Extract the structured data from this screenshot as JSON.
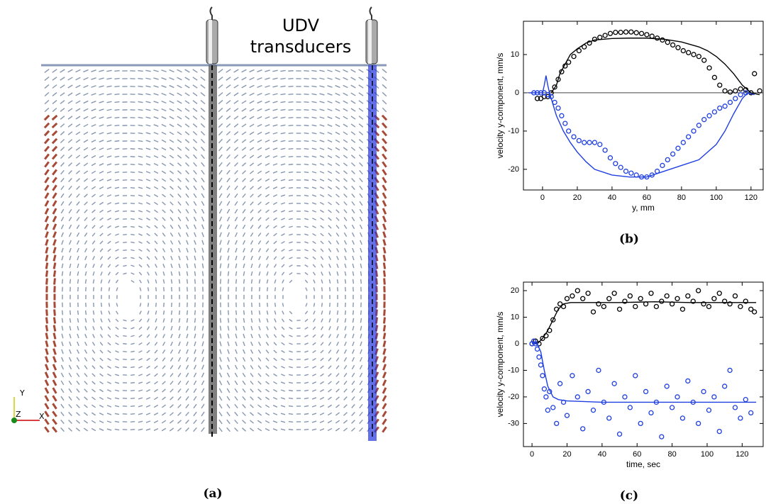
{
  "panel_a": {
    "annotation_lines": [
      "UDV",
      "transducers"
    ],
    "caption": "(a)",
    "axis_labels": [
      "Y",
      "Z",
      "X"
    ]
  },
  "chart_data": [
    {
      "type": "line",
      "caption": "(b)",
      "x_label": "y, mm",
      "y_label": "velocity y-component, mm/s",
      "xlim": [
        -11,
        127
      ],
      "ylim": [
        -25.4,
        18.7
      ],
      "xticks": [
        0,
        20,
        40,
        60,
        80,
        100,
        120
      ],
      "yticks": [
        -20,
        -10,
        0,
        10
      ],
      "zero_line": true,
      "series": [
        {
          "color": "#000000",
          "mode": "markers",
          "x": [
            -3,
            -1,
            1,
            3,
            5,
            7,
            9,
            11,
            13,
            15,
            18,
            21,
            24,
            27,
            30,
            33,
            36,
            39,
            42,
            45,
            48,
            51,
            54,
            57,
            60,
            63,
            66,
            69,
            72,
            75,
            78,
            81,
            84,
            87,
            90,
            93,
            96,
            99,
            102,
            105,
            108,
            111,
            114,
            117,
            120,
            122,
            125
          ],
          "values": [
            -1.5,
            -1.5,
            -1,
            -1,
            0,
            1.5,
            3.5,
            5.5,
            7,
            8,
            9.5,
            11,
            12,
            13,
            14,
            14.5,
            15,
            15.5,
            15.8,
            15.8,
            15.9,
            15.9,
            15.7,
            15.5,
            15.2,
            14.8,
            14.3,
            13.8,
            13.2,
            12.5,
            11.8,
            11,
            10.5,
            10,
            9.5,
            8.5,
            6.5,
            4,
            2,
            0.5,
            0.2,
            0.5,
            1,
            0.8,
            0,
            5,
            0.5
          ]
        },
        {
          "color": "#000000",
          "mode": "line",
          "x": [
            5,
            8,
            10,
            13,
            16,
            20,
            25,
            30,
            40,
            50,
            60,
            70,
            80,
            90,
            95,
            100,
            105,
            110,
            115,
            120,
            125
          ],
          "values": [
            0,
            2,
            5,
            7.5,
            10,
            11.5,
            13,
            13.8,
            14.2,
            14.3,
            14.3,
            14,
            13.3,
            12,
            11,
            9.5,
            7.5,
            5,
            2,
            0,
            -0.5
          ]
        },
        {
          "color": "#1f3fe0",
          "mode": "markers",
          "x": [
            -5,
            -3,
            -1,
            1,
            3,
            5,
            7,
            9,
            11,
            13,
            15,
            18,
            21,
            24,
            27,
            30,
            33,
            36,
            39,
            42,
            45,
            48,
            51,
            54,
            57,
            60,
            63,
            66,
            69,
            72,
            75,
            78,
            81,
            84,
            87,
            90,
            93,
            96,
            99,
            102,
            105,
            108,
            111,
            114,
            117
          ],
          "values": [
            0,
            0,
            0,
            0,
            -0.5,
            -1,
            -2.5,
            -4,
            -6,
            -8,
            -10,
            -11.5,
            -12.5,
            -13,
            -13,
            -13,
            -13.5,
            -15,
            -17,
            -18.5,
            -19.5,
            -20.5,
            -21,
            -21.5,
            -22,
            -22,
            -21.5,
            -20.5,
            -19,
            -17.5,
            -16,
            -14.5,
            -13,
            -11.5,
            -10,
            -8.5,
            -7,
            -6,
            -5,
            -4,
            -3.5,
            -2.5,
            -1.5,
            -0.5,
            0
          ]
        },
        {
          "color": "#1f3fe0",
          "mode": "line",
          "x": [
            -8,
            0,
            1,
            2,
            3,
            4,
            6,
            8,
            12,
            16,
            20,
            25,
            30,
            40,
            50,
            60,
            70,
            80,
            90,
            100,
            105,
            110,
            115,
            118,
            122
          ],
          "values": [
            0,
            0,
            2,
            4.5,
            2,
            0,
            -3,
            -6,
            -10,
            -13,
            -15.5,
            -18,
            -20,
            -21.5,
            -22,
            -22,
            -20.5,
            -19,
            -17.5,
            -13.5,
            -10,
            -5.5,
            -1.5,
            0,
            -0.5
          ]
        }
      ]
    },
    {
      "type": "line",
      "caption": "(c)",
      "x_label": "time, sec",
      "y_label": "velocity y-component, mm/s",
      "xlim": [
        -4.9,
        132
      ],
      "ylim": [
        -38.7,
        23.2
      ],
      "xticks": [
        0,
        20,
        40,
        60,
        80,
        100,
        120
      ],
      "yticks": [
        -30,
        -20,
        -10,
        0,
        10,
        20
      ],
      "zero_line": false,
      "series": [
        {
          "color": "#000000",
          "mode": "markers",
          "x": [
            0,
            2,
            4,
            6,
            8,
            10,
            12,
            14,
            16,
            18,
            20,
            23,
            26,
            29,
            32,
            35,
            38,
            41,
            44,
            47,
            50,
            53,
            56,
            59,
            62,
            65,
            68,
            71,
            74,
            77,
            80,
            83,
            86,
            89,
            92,
            95,
            98,
            101,
            104,
            107,
            110,
            113,
            116,
            119,
            122,
            125,
            127
          ],
          "values": [
            0,
            1,
            0,
            2,
            3,
            5,
            9,
            13,
            15,
            14,
            17,
            18,
            20,
            17,
            19,
            12,
            15,
            14,
            17,
            19,
            13,
            16,
            18,
            14,
            17,
            15,
            19,
            14,
            16,
            18,
            15,
            17,
            13,
            18,
            16,
            20,
            15,
            14,
            17,
            19,
            16,
            15,
            18,
            14,
            16,
            13,
            12
          ]
        },
        {
          "color": "#000000",
          "mode": "line",
          "x": [
            0,
            3,
            6,
            9,
            12,
            15,
            18,
            22,
            30,
            50,
            70,
            90,
            110,
            128
          ],
          "values": [
            0,
            0,
            2,
            5,
            9,
            13,
            15,
            15.5,
            15.5,
            15.5,
            15.8,
            15.5,
            15.5,
            15.5
          ]
        },
        {
          "color": "#1f3fe0",
          "mode": "markers",
          "x": [
            0,
            1,
            2,
            3,
            4,
            5,
            6,
            7,
            8,
            9,
            10,
            12,
            14,
            16,
            18,
            20,
            23,
            26,
            29,
            32,
            35,
            38,
            41,
            44,
            47,
            50,
            53,
            56,
            59,
            62,
            65,
            68,
            71,
            74,
            77,
            80,
            83,
            86,
            89,
            92,
            95,
            98,
            101,
            104,
            107,
            110,
            113,
            116,
            119,
            122,
            125
          ],
          "values": [
            0,
            1,
            0,
            -2,
            -5,
            -8,
            -12,
            -17,
            -20,
            -25,
            -18,
            -24,
            -30,
            -15,
            -22,
            -27,
            -12,
            -20,
            -32,
            -18,
            -25,
            -10,
            -22,
            -28,
            -15,
            -34,
            -20,
            -24,
            -12,
            -30,
            -18,
            -26,
            -22,
            -35,
            -16,
            -24,
            -20,
            -28,
            -14,
            -22,
            -30,
            -18,
            -25,
            -20,
            -33,
            -16,
            -10,
            -24,
            -28,
            -21,
            -26
          ]
        },
        {
          "color": "#1f3fe0",
          "mode": "line",
          "x": [
            0,
            3,
            5,
            7,
            9,
            12,
            15,
            20,
            40,
            60,
            80,
            100,
            120,
            128
          ],
          "values": [
            0,
            0,
            -3,
            -10,
            -16,
            -20,
            -21,
            -21.5,
            -22,
            -22,
            -22,
            -22,
            -22,
            -22
          ]
        }
      ]
    }
  ]
}
